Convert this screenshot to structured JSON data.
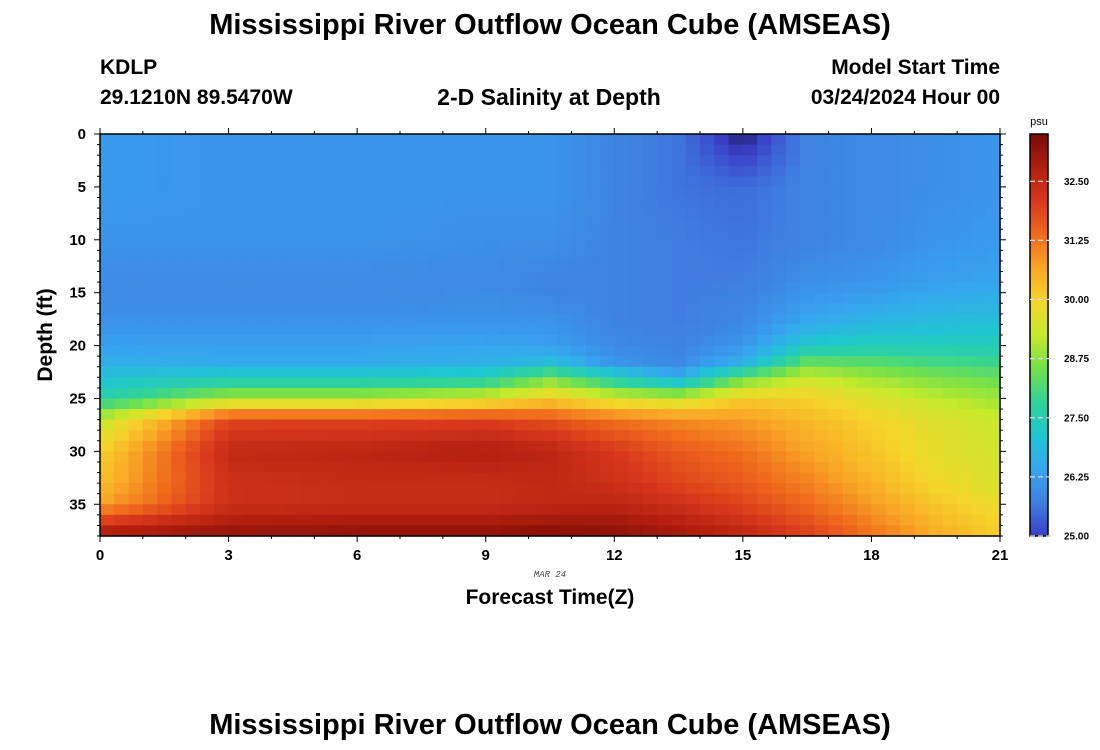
{
  "header": {
    "title": "Mississippi River Outflow Ocean Cube (AMSEAS)",
    "station_id": "KDLP",
    "coordinates": "29.1210N  89.5470W",
    "subtitle": "2-D Salinity at Depth",
    "model_start_label": "Model Start Time",
    "model_start_value": "03/24/2024 Hour 00"
  },
  "footer": {
    "title": "Mississippi River Outflow Ocean Cube (AMSEAS)"
  },
  "chart_data": {
    "type": "heatmap",
    "title": "2-D Salinity at Depth",
    "xlabel": "Forecast Time(Z)",
    "ylabel": "Depth (ft)",
    "date_label": "MAR 24",
    "xlim": [
      0,
      21
    ],
    "ylim": [
      0,
      38
    ],
    "y_inverted": true,
    "x_ticks": [
      "0",
      "3",
      "6",
      "9",
      "12",
      "15",
      "18",
      "21"
    ],
    "y_ticks": [
      "0",
      "5",
      "10",
      "15",
      "20",
      "25",
      "30",
      "35"
    ],
    "colorbar": {
      "unit": "psu",
      "min": 25.0,
      "max": 33.5,
      "ticks": [
        "25.00",
        "26.25",
        "27.50",
        "28.75",
        "30.00",
        "31.25",
        "32.50"
      ],
      "colors": [
        "#3a3fc8",
        "#3f7fe0",
        "#36a6f0",
        "#1fc7d0",
        "#2fd39a",
        "#74e04a",
        "#c6ea2a",
        "#f5d52a",
        "#f9a726",
        "#ef6a1d",
        "#d9381c",
        "#b01f0e",
        "#7a0a06"
      ]
    },
    "x_series": [
      0,
      3,
      6,
      9,
      10.5,
      12,
      13.5,
      15,
      16.5,
      18,
      19.5,
      21
    ],
    "depth_series": [
      0,
      5,
      10,
      14,
      16,
      18,
      20,
      21.5,
      23,
      25,
      27,
      30,
      33,
      35,
      38
    ],
    "salinity_grid": [
      [
        26.2,
        26.2,
        26.1,
        25.9,
        25.9,
        26.1,
        26.3,
        26.6,
        27.0,
        27.6,
        29.2,
        30.0,
        30.3,
        30.7,
        33.1
      ],
      [
        26.1,
        26.1,
        26.1,
        25.9,
        25.9,
        26.1,
        26.3,
        26.5,
        27.3,
        29.0,
        31.9,
        32.5,
        32.3,
        32.3,
        33.2
      ],
      [
        26.1,
        26.1,
        26.1,
        25.9,
        25.9,
        26.1,
        26.3,
        26.5,
        27.3,
        29.0,
        31.9,
        32.6,
        32.4,
        32.4,
        33.3
      ],
      [
        26.1,
        26.1,
        26.0,
        25.9,
        26.0,
        26.1,
        26.4,
        26.6,
        27.4,
        29.5,
        32.0,
        32.8,
        32.4,
        32.4,
        33.3
      ],
      [
        26.1,
        26.1,
        26.0,
        25.8,
        25.9,
        26.1,
        26.3,
        26.9,
        28.5,
        30.1,
        31.7,
        32.6,
        32.5,
        32.5,
        33.4
      ],
      [
        25.8,
        25.8,
        25.8,
        25.8,
        25.8,
        25.8,
        25.9,
        26.1,
        27.4,
        29.5,
        31.3,
        32.1,
        32.3,
        32.6,
        33.3
      ],
      [
        25.6,
        25.6,
        25.7,
        25.7,
        25.7,
        25.7,
        25.8,
        25.9,
        26.5,
        29.3,
        31.0,
        31.6,
        31.9,
        32.3,
        33.0
      ],
      [
        24.6,
        25.5,
        25.6,
        25.7,
        25.8,
        25.9,
        26.1,
        26.6,
        28.4,
        30.1,
        30.8,
        31.3,
        31.6,
        31.9,
        32.6
      ],
      [
        25.8,
        25.8,
        25.8,
        26.0,
        26.2,
        26.5,
        27.2,
        28.3,
        29.3,
        30.0,
        30.4,
        30.7,
        31.1,
        31.4,
        32.0
      ],
      [
        25.9,
        25.9,
        25.9,
        26.1,
        26.4,
        26.8,
        27.4,
        28.2,
        28.9,
        29.6,
        30.0,
        30.2,
        30.5,
        30.8,
        31.3
      ],
      [
        26.0,
        26.0,
        26.1,
        26.3,
        26.6,
        26.9,
        27.4,
        28.0,
        28.6,
        29.2,
        29.6,
        29.7,
        29.9,
        30.2,
        30.6
      ],
      [
        26.1,
        26.1,
        26.2,
        26.4,
        26.7,
        27.0,
        27.4,
        27.9,
        28.4,
        28.9,
        29.3,
        29.4,
        29.5,
        29.8,
        30.1
      ]
    ]
  }
}
